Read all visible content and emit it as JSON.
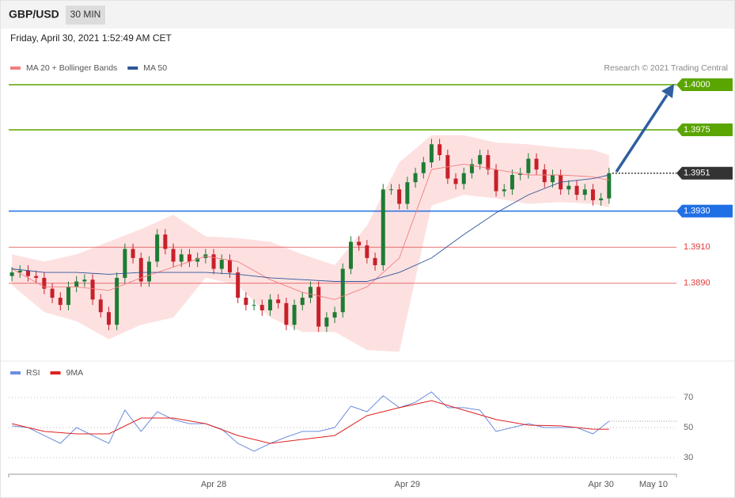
{
  "header": {
    "symbol": "GBP/USD",
    "interval": "30 MIN",
    "date": "Friday, April 30, 2021 1:52:49 AM CET",
    "source": "Research © 2021 Trading Central"
  },
  "chart_data": [
    {
      "type": "candlestick",
      "xlim": [
        -0.8,
        164.7
      ],
      "ylim": [
        1.3846,
        1.4005
      ],
      "up_color": "#1e7b34",
      "down_color": "#c8202a",
      "x": [
        0,
        2,
        4,
        6,
        8,
        10,
        12,
        14,
        16,
        18,
        20,
        22,
        24,
        26,
        28,
        30,
        32,
        34,
        36,
        38,
        40,
        42,
        44,
        46,
        48,
        50,
        52,
        54,
        56,
        58,
        60,
        62,
        64,
        66,
        68,
        70,
        72,
        74,
        76,
        78,
        80,
        82,
        84,
        86,
        88,
        90,
        92,
        94,
        96,
        98,
        100,
        102,
        104,
        106,
        108,
        110,
        112,
        114,
        116,
        118,
        120,
        122,
        124,
        126,
        128,
        130,
        132,
        134,
        136,
        138,
        140,
        142,
        144,
        146,
        148
      ],
      "open": [
        1.3894,
        1.3896,
        1.3897,
        1.3894,
        1.3893,
        1.3887,
        1.3882,
        1.3878,
        1.3888,
        1.3891,
        1.3892,
        1.3881,
        1.3874,
        1.3867,
        1.3893,
        1.3909,
        1.3904,
        1.3891,
        1.3902,
        1.3917,
        1.3909,
        1.3902,
        1.3906,
        1.3902,
        1.3904,
        1.3906,
        1.3898,
        1.3903,
        1.3896,
        1.3882,
        1.3878,
        1.3878,
        1.3875,
        1.3881,
        1.3879,
        1.3867,
        1.3878,
        1.3882,
        1.3888,
        1.3866,
        1.3871,
        1.3874,
        1.3898,
        1.3913,
        1.3911,
        1.3904,
        1.39,
        1.3942,
        1.3942,
        1.3934,
        1.3946,
        1.3951,
        1.3957,
        1.3967,
        1.3961,
        1.3948,
        1.3945,
        1.3951,
        1.3956,
        1.3961,
        1.3953,
        1.3941,
        1.3942,
        1.395,
        1.3951,
        1.3959,
        1.3953,
        1.3946,
        1.395,
        1.3942,
        1.3944,
        1.3939,
        1.3942,
        1.3936,
        1.3937
      ],
      "high": [
        1.3899,
        1.39,
        1.39,
        1.3897,
        1.3896,
        1.389,
        1.3885,
        1.3891,
        1.3894,
        1.3895,
        1.3895,
        1.3884,
        1.3877,
        1.3896,
        1.3912,
        1.3912,
        1.3907,
        1.3905,
        1.392,
        1.392,
        1.3912,
        1.3909,
        1.3909,
        1.3907,
        1.3909,
        1.3909,
        1.3906,
        1.3906,
        1.3899,
        1.3885,
        1.3881,
        1.3881,
        1.3884,
        1.3884,
        1.3882,
        1.3881,
        1.3885,
        1.3891,
        1.3891,
        1.3874,
        1.3877,
        1.3901,
        1.3916,
        1.3916,
        1.3914,
        1.3907,
        1.3945,
        1.3945,
        1.3945,
        1.3949,
        1.3954,
        1.396,
        1.397,
        1.397,
        1.3964,
        1.3951,
        1.3954,
        1.3959,
        1.3964,
        1.3964,
        1.3956,
        1.3945,
        1.3953,
        1.3954,
        1.3962,
        1.3962,
        1.3956,
        1.3953,
        1.3953,
        1.3947,
        1.3947,
        1.3945,
        1.3945,
        1.394,
        1.3954
      ],
      "low": [
        1.3891,
        1.3893,
        1.3891,
        1.389,
        1.3884,
        1.3879,
        1.3875,
        1.3875,
        1.3885,
        1.3888,
        1.3878,
        1.3871,
        1.3864,
        1.3864,
        1.389,
        1.3901,
        1.3888,
        1.3888,
        1.3899,
        1.3906,
        1.3899,
        1.3899,
        1.3899,
        1.3899,
        1.3901,
        1.3895,
        1.3895,
        1.3893,
        1.3879,
        1.3875,
        1.3875,
        1.3872,
        1.3872,
        1.3876,
        1.3864,
        1.3864,
        1.3875,
        1.3879,
        1.3863,
        1.3863,
        1.3868,
        1.3871,
        1.3895,
        1.3908,
        1.3901,
        1.3897,
        1.3897,
        1.3939,
        1.3931,
        1.3931,
        1.3943,
        1.3948,
        1.3954,
        1.3958,
        1.3945,
        1.3942,
        1.3942,
        1.3948,
        1.3953,
        1.395,
        1.3938,
        1.3938,
        1.3939,
        1.3947,
        1.3948,
        1.395,
        1.3943,
        1.3943,
        1.3939,
        1.3939,
        1.3936,
        1.3936,
        1.3933,
        1.3933,
        1.3934
      ],
      "close": [
        1.3896,
        1.3897,
        1.3894,
        1.3893,
        1.3887,
        1.3882,
        1.3878,
        1.3888,
        1.3891,
        1.3892,
        1.3881,
        1.3874,
        1.3867,
        1.3893,
        1.3909,
        1.3904,
        1.3891,
        1.3902,
        1.3917,
        1.3909,
        1.3902,
        1.3906,
        1.3902,
        1.3904,
        1.3906,
        1.3898,
        1.3903,
        1.3896,
        1.3882,
        1.3878,
        1.3878,
        1.3875,
        1.3881,
        1.3879,
        1.3867,
        1.3878,
        1.3882,
        1.3888,
        1.3866,
        1.3871,
        1.3874,
        1.3898,
        1.3913,
        1.3911,
        1.3904,
        1.39,
        1.3942,
        1.3942,
        1.3934,
        1.3946,
        1.3951,
        1.3957,
        1.3967,
        1.3961,
        1.3948,
        1.3945,
        1.3951,
        1.3956,
        1.3961,
        1.3953,
        1.3941,
        1.3942,
        1.395,
        1.3951,
        1.3959,
        1.3953,
        1.3946,
        1.395,
        1.3942,
        1.3944,
        1.3939,
        1.3942,
        1.3936,
        1.3937,
        1.3951
      ],
      "series": [
        {
          "name": "MA 20 + Bollinger Bands",
          "color": "#f27e7e",
          "band_color": "#fde1e1",
          "x": [
            0,
            8,
            16,
            24,
            32,
            40,
            48,
            56,
            64,
            72,
            80,
            88,
            96,
            104,
            112,
            120,
            128,
            136,
            144,
            148
          ],
          "upper": [
            1.3906,
            1.3902,
            1.3906,
            1.3913,
            1.392,
            1.3928,
            1.3916,
            1.3915,
            1.3913,
            1.3906,
            1.39,
            1.3922,
            1.3957,
            1.3972,
            1.3972,
            1.3968,
            1.3967,
            1.3965,
            1.3964,
            1.3961
          ],
          "lower": [
            1.3889,
            1.3874,
            1.3869,
            1.3859,
            1.3867,
            1.3871,
            1.3893,
            1.3889,
            1.3871,
            1.3863,
            1.3863,
            1.3853,
            1.3852,
            1.3933,
            1.3939,
            1.3937,
            1.3934,
            1.3935,
            1.3934,
            1.3932
          ],
          "values": [
            1.3898,
            1.3888,
            1.3888,
            1.3886,
            1.3893,
            1.3899,
            1.3905,
            1.3902,
            1.3892,
            1.3885,
            1.3881,
            1.3888,
            1.3904,
            1.3953,
            1.3956,
            1.3953,
            1.395,
            1.395,
            1.3949,
            1.3947
          ]
        },
        {
          "name": "MA 50",
          "color": "#2f5597",
          "x": [
            0,
            8,
            16,
            24,
            32,
            40,
            48,
            56,
            64,
            72,
            80,
            88,
            96,
            104,
            112,
            120,
            128,
            136,
            144,
            148
          ],
          "values": [
            1.3898,
            1.3896,
            1.3896,
            1.3895,
            1.3896,
            1.3896,
            1.3896,
            1.3895,
            1.3893,
            1.3892,
            1.3891,
            1.3891,
            1.3896,
            1.3904,
            1.3917,
            1.3929,
            1.3939,
            1.3946,
            1.3948,
            1.395
          ]
        }
      ],
      "levels": [
        {
          "value": 1.4,
          "label": "1.4000",
          "color": "#5aa500",
          "style": "box"
        },
        {
          "value": 1.3975,
          "label": "1.3975",
          "color": "#5aa500",
          "style": "box"
        },
        {
          "value": 1.3951,
          "label": "1.3951",
          "color": "#333333",
          "style": "box",
          "line": "dotted"
        },
        {
          "value": 1.393,
          "label": "1.3930",
          "color": "#1f6fe5",
          "style": "box"
        },
        {
          "value": 1.391,
          "label": "1.3910",
          "color": "#e03a3a",
          "style": "text"
        },
        {
          "value": 1.389,
          "label": "1.3890",
          "color": "#e03a3a",
          "style": "text"
        }
      ]
    },
    {
      "type": "line",
      "xlim": [
        -0.8,
        164.7
      ],
      "ylim": [
        21,
        82
      ],
      "yticks": [
        30,
        50,
        70
      ],
      "grid": true,
      "xticks": [
        {
          "value": 50,
          "label": "Apr 28"
        },
        {
          "value": 98,
          "label": "Apr 29"
        },
        {
          "value": 146,
          "label": "Apr 30"
        },
        {
          "value": 159,
          "label": "May 10"
        }
      ],
      "series": [
        {
          "name": "RSI",
          "color": "#6b8ee0",
          "last_value_line": true,
          "x": [
            0,
            4,
            8,
            12,
            16,
            20,
            24,
            28,
            32,
            36,
            40,
            44,
            48,
            52,
            56,
            60,
            64,
            68,
            72,
            76,
            80,
            84,
            88,
            92,
            96,
            100,
            104,
            108,
            112,
            116,
            120,
            124,
            128,
            132,
            136,
            140,
            144,
            148
          ],
          "values": [
            51.1,
            50,
            44.7,
            39.5,
            50,
            44.7,
            39.5,
            61.6,
            47.4,
            60.5,
            55.3,
            52.6,
            52.6,
            48.9,
            39.5,
            34.2,
            39.5,
            43.7,
            47.4,
            47.4,
            50,
            64.2,
            60.5,
            71.1,
            63.2,
            66.8,
            73.7,
            63.2,
            63.2,
            61.6,
            47.4,
            50,
            52.6,
            50,
            50,
            50,
            45.8,
            54.2
          ]
        },
        {
          "name": "9MA",
          "color": "#e02020",
          "x": [
            0,
            8,
            16,
            24,
            32,
            40,
            48,
            56,
            64,
            72,
            80,
            88,
            96,
            104,
            112,
            120,
            128,
            136,
            144,
            148
          ],
          "values": [
            52.6,
            47.4,
            45.8,
            45.8,
            56.3,
            56.3,
            52.6,
            44.7,
            39.5,
            42.1,
            44.7,
            57.9,
            63.2,
            67.9,
            61.6,
            55.3,
            51.6,
            51.1,
            48.9,
            48.9
          ]
        }
      ]
    }
  ]
}
